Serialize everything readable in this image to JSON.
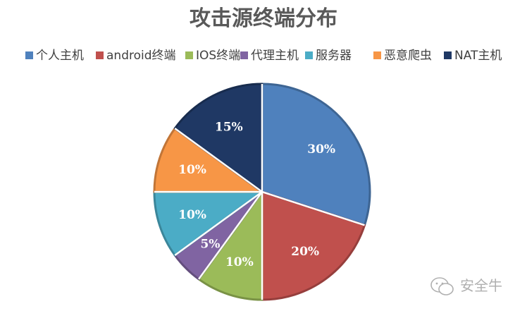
{
  "chart_data": {
    "type": "pie",
    "title": "攻击源终端分布",
    "legend_position": "top",
    "start_angle_deg": 0,
    "direction": "clockwise",
    "slices": [
      {
        "label": "个人主机",
        "value": 30,
        "display": "30%",
        "color": "#4f81bd"
      },
      {
        "label": "android终端",
        "value": 20,
        "display": "20%",
        "color": "#c0504d"
      },
      {
        "label": "IOS终端",
        "value": 10,
        "display": "10%",
        "color": "#9bbb59"
      },
      {
        "label": "代理主机",
        "value": 5,
        "display": "5%",
        "color": "#8064a2"
      },
      {
        "label": "服务器",
        "value": 10,
        "display": "10%",
        "color": "#4bacc6"
      },
      {
        "label": "恶意爬虫",
        "value": 10,
        "display": "10%",
        "color": "#f79646"
      },
      {
        "label": "NAT主机",
        "value": 15,
        "display": "15%",
        "color": "#1f3864"
      }
    ]
  },
  "watermark": {
    "text": "安全牛",
    "icon": "wechat-icon"
  }
}
